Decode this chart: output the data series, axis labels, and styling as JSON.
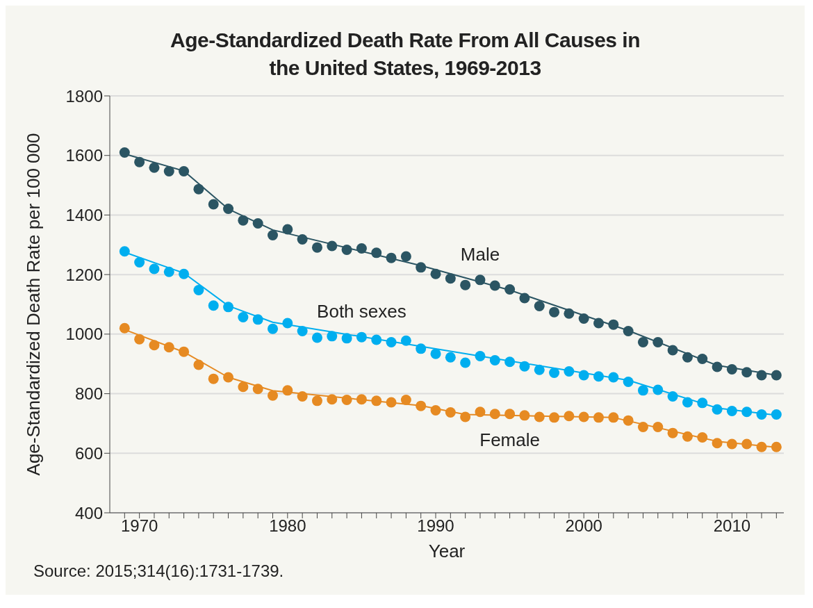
{
  "chart_data": {
    "type": "scatter",
    "title": "Age-Standardized Death Rate From All Causes in the United States, 1969-2013",
    "xlabel": "Year",
    "ylabel": "Age-Standardized Death Rate per 100 000",
    "annotations": [
      "Source: 2015;314(16):1731-1739."
    ],
    "x": [
      1969,
      1970,
      1971,
      1972,
      1973,
      1974,
      1975,
      1976,
      1977,
      1978,
      1979,
      1980,
      1981,
      1982,
      1983,
      1984,
      1985,
      1986,
      1987,
      1988,
      1989,
      1990,
      1991,
      1992,
      1993,
      1994,
      1995,
      1996,
      1997,
      1998,
      1999,
      2000,
      2001,
      2002,
      2003,
      2004,
      2005,
      2006,
      2007,
      2008,
      2009,
      2010,
      2011,
      2012,
      2013
    ],
    "series": [
      {
        "name": "Male",
        "color": "#2b5563",
        "values": [
          1610,
          1578,
          1559,
          1547,
          1547,
          1487,
          1436,
          1421,
          1382,
          1372,
          1332,
          1352,
          1318,
          1291,
          1296,
          1283,
          1288,
          1273,
          1256,
          1261,
          1224,
          1202,
          1187,
          1165,
          1182,
          1163,
          1150,
          1121,
          1094,
          1074,
          1069,
          1052,
          1037,
          1032,
          1010,
          973,
          973,
          946,
          922,
          917,
          890,
          882,
          872,
          862,
          862
        ]
      },
      {
        "name": "Both sexes",
        "color": "#00aeef",
        "values": [
          1278,
          1241,
          1219,
          1209,
          1202,
          1148,
          1096,
          1091,
          1057,
          1049,
          1018,
          1037,
          1010,
          988,
          993,
          986,
          990,
          981,
          973,
          978,
          951,
          934,
          922,
          904,
          926,
          912,
          907,
          892,
          880,
          870,
          875,
          862,
          858,
          855,
          840,
          811,
          813,
          791,
          771,
          769,
          747,
          742,
          739,
          730,
          730
        ]
      },
      {
        "name": "Female",
        "color": "#e68a22",
        "values": [
          1020,
          983,
          963,
          956,
          941,
          897,
          850,
          855,
          823,
          816,
          794,
          811,
          791,
          776,
          781,
          779,
          781,
          776,
          771,
          779,
          759,
          744,
          737,
          722,
          739,
          732,
          732,
          727,
          722,
          720,
          725,
          722,
          720,
          720,
          710,
          688,
          688,
          668,
          656,
          653,
          634,
          631,
          631,
          621,
          621
        ]
      },
      {
        "type": "line",
        "marker": "none",
        "color": "#2b5563",
        "x": [
          1969,
          1973,
          1976,
          1979,
          1989,
          1995,
          2003,
          2009,
          2013
        ],
        "values": [
          1605,
          1548,
          1420,
          1350,
          1230,
          1148,
          1012,
          895,
          862
        ]
      },
      {
        "type": "line",
        "marker": "none",
        "color": "#00aeef",
        "x": [
          1969,
          1973,
          1976,
          1979,
          1987,
          2003,
          2009,
          2013
        ],
        "values": [
          1275,
          1205,
          1095,
          1040,
          975,
          845,
          752,
          728
        ]
      },
      {
        "type": "line",
        "marker": "none",
        "color": "#e68a22",
        "x": [
          1969,
          1973,
          1976,
          1979,
          1989,
          1992,
          2002,
          2009,
          2013
        ],
        "values": [
          1015,
          940,
          855,
          810,
          760,
          730,
          720,
          640,
          620
        ]
      }
    ],
    "marker": "circle",
    "line_style": "solid",
    "grid": "y",
    "xlim": [
      1968,
      2013.5
    ],
    "xticks": [
      {
        "value": 1969,
        "label": null
      },
      1970,
      {
        "value": 1971,
        "label": null
      },
      {
        "value": 1972,
        "label": null
      },
      {
        "value": 1973,
        "label": null
      },
      {
        "value": 1974,
        "label": null
      },
      {
        "value": 1975,
        "label": null
      },
      {
        "value": 1976,
        "label": null
      },
      {
        "value": 1977,
        "label": null
      },
      {
        "value": 1978,
        "label": null
      },
      {
        "value": 1979,
        "label": null
      },
      1980,
      {
        "value": 1981,
        "label": null
      },
      {
        "value": 1982,
        "label": null
      },
      {
        "value": 1983,
        "label": null
      },
      {
        "value": 1984,
        "label": null
      },
      {
        "value": 1985,
        "label": null
      },
      {
        "value": 1986,
        "label": null
      },
      {
        "value": 1987,
        "label": null
      },
      {
        "value": 1988,
        "label": null
      },
      {
        "value": 1989,
        "label": null
      },
      1990,
      {
        "value": 1991,
        "label": null
      },
      {
        "value": 1992,
        "label": null
      },
      {
        "value": 1993,
        "label": null
      },
      {
        "value": 1994,
        "label": null
      },
      {
        "value": 1995,
        "label": null
      },
      {
        "value": 1996,
        "label": null
      },
      {
        "value": 1997,
        "label": null
      },
      {
        "value": 1998,
        "label": null
      },
      {
        "value": 1999,
        "label": null
      },
      2000,
      {
        "value": 2001,
        "label": null
      },
      {
        "value": 2002,
        "label": null
      },
      {
        "value": 2003,
        "label": null
      },
      {
        "value": 2004,
        "label": null
      },
      {
        "value": 2005,
        "label": null
      },
      {
        "value": 2006,
        "label": null
      },
      {
        "value": 2007,
        "label": null
      },
      {
        "value": 2008,
        "label": null
      },
      {
        "value": 2009,
        "label": null
      },
      2010,
      {
        "value": 2011,
        "label": null
      },
      {
        "value": 2012,
        "label": null
      },
      {
        "value": 2013,
        "label": null
      }
    ],
    "ylim": [
      400,
      1800
    ],
    "yticks": [
      400,
      600,
      800,
      1000,
      1200,
      1400,
      1600,
      1800
    ]
  }
}
